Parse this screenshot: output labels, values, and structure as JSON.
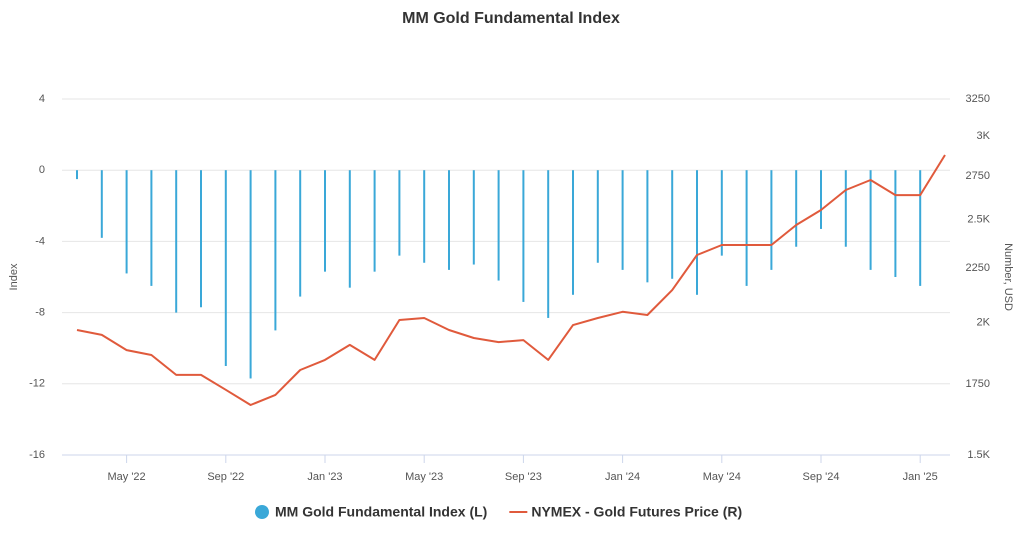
{
  "chart_data": {
    "type": "bar-line",
    "title": "MM Gold Fundamental Index",
    "ylabel": "Index",
    "y2label": "Number, USD",
    "ylim": [
      -16,
      4
    ],
    "yticks": [
      -16,
      -12,
      -8,
      -4,
      0,
      4
    ],
    "y2lim": [
      1500,
      3250
    ],
    "y2ticks": [
      {
        "value": 1500,
        "label": "1.5K"
      },
      1750,
      {
        "value": 2000,
        "label": "2K"
      },
      2250,
      {
        "value": 2500,
        "label": "2.5K"
      },
      2750,
      {
        "value": 3000,
        "label": "3K"
      },
      3250
    ],
    "y2log": true,
    "grid": true,
    "legend": "bottom",
    "xticks": [
      {
        "value": "2022-05",
        "label": "May '22"
      },
      {
        "value": "2022-09",
        "label": "Sep '22"
      },
      {
        "value": "2023-01",
        "label": "Jan '23"
      },
      {
        "value": "2023-05",
        "label": "May '23"
      },
      {
        "value": "2023-09",
        "label": "Sep '23"
      },
      {
        "value": "2024-01",
        "label": "Jan '24"
      },
      {
        "value": "2024-05",
        "label": "May '24"
      },
      {
        "value": "2024-09",
        "label": "Sep '24"
      },
      {
        "value": "2025-01",
        "label": "Jan '25"
      }
    ],
    "series": [
      {
        "name": "MM Gold Fundamental Index (L)",
        "type": "bar",
        "color": "#3aa8d8",
        "x": [
          "2022-03",
          "2022-04",
          "2022-05",
          "2022-06",
          "2022-07",
          "2022-08",
          "2022-09",
          "2022-10",
          "2022-11",
          "2022-12",
          "2023-01",
          "2023-02",
          "2023-03",
          "2023-04",
          "2023-05",
          "2023-06",
          "2023-07",
          "2023-08",
          "2023-09",
          "2023-10",
          "2023-11",
          "2023-12",
          "2024-01",
          "2024-02",
          "2024-03",
          "2024-04",
          "2024-05",
          "2024-06",
          "2024-07",
          "2024-08",
          "2024-09",
          "2024-10",
          "2024-11",
          "2024-12",
          "2025-01"
        ],
        "values": [
          -0.5,
          -3.8,
          -5.8,
          -6.5,
          -8.0,
          -7.7,
          -11.0,
          -11.7,
          -9.0,
          -7.1,
          -5.7,
          -6.6,
          -5.7,
          -4.8,
          -5.2,
          -5.6,
          -5.3,
          -6.2,
          -7.4,
          -8.3,
          -7.0,
          -5.2,
          -5.6,
          -6.3,
          -6.1,
          -7.0,
          -4.8,
          -6.5,
          -5.6,
          -4.3,
          -3.3,
          -4.3,
          -5.6,
          -6.0,
          -6.5
        ]
      },
      {
        "name": "NYMEX - Gold Futures Price (R)",
        "type": "line",
        "axis": "y2",
        "color": "#e05a3c",
        "x": [
          "2022-03",
          "2022-04",
          "2022-05",
          "2022-06",
          "2022-07",
          "2022-08",
          "2022-09",
          "2022-10",
          "2022-11",
          "2022-12",
          "2023-01",
          "2023-02",
          "2023-03",
          "2023-04",
          "2023-05",
          "2023-06",
          "2023-07",
          "2023-08",
          "2023-09",
          "2023-10",
          "2023-11",
          "2023-12",
          "2024-01",
          "2024-02",
          "2024-03",
          "2024-04",
          "2024-05",
          "2024-06",
          "2024-07",
          "2024-08",
          "2024-09",
          "2024-10",
          "2024-11",
          "2024-12",
          "2025-01",
          "2025-02"
        ],
        "values": [
          1968,
          1947,
          1884,
          1864,
          1785,
          1785,
          1728,
          1672,
          1709,
          1804,
          1844,
          1905,
          1844,
          2011,
          2020,
          1968,
          1934,
          1917,
          1925,
          1844,
          1989,
          2020,
          2047,
          2033,
          2146,
          2316,
          2367,
          2367,
          2367,
          2472,
          2554,
          2667,
          2726,
          2638,
          2638,
          2878
        ]
      }
    ]
  }
}
